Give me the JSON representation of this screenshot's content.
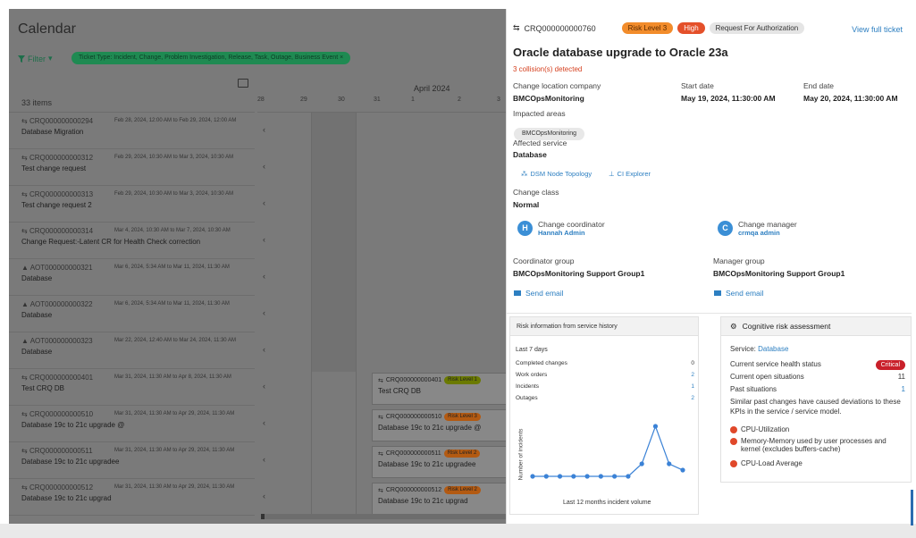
{
  "calendar": {
    "title": "Calendar",
    "filter_label": "Filter",
    "filter_chip": "Ticket Type: Incident, Change, Problem Investigation, Release, Task, Outage, Business Event",
    "items_count": "33 items",
    "month": "April 2024",
    "days": [
      "28",
      "29",
      "30",
      "31",
      "1",
      "2",
      "3"
    ],
    "rows": [
      {
        "id": "CRQ000000000294",
        "date": "Feb 28, 2024, 12:00 AM to Feb 29, 2024, 12:00 AM",
        "name": "Database Migration"
      },
      {
        "id": "CRQ000000000312",
        "date": "Feb 29, 2024, 10:30 AM to Mar 3, 2024, 10:30 AM",
        "name": "Test change request"
      },
      {
        "id": "CRQ000000000313",
        "date": "Feb 29, 2024, 10:30 AM to Mar 3, 2024, 10:30 AM",
        "name": "Test change request 2"
      },
      {
        "id": "CRQ000000000314",
        "date": "Mar 4, 2024, 10:30 AM to Mar 7, 2024, 10:30 AM",
        "name": "Change Request:-Latent CR for Health Check correction"
      },
      {
        "id": "AOT000000000321",
        "date": "Mar 6, 2024, 5:34 AM to Mar 11, 2024, 11:30 AM",
        "name": "Database"
      },
      {
        "id": "AOT000000000322",
        "date": "Mar 6, 2024, 5:34 AM to Mar 11, 2024, 11:30 AM",
        "name": "Database"
      },
      {
        "id": "AOT000000000323",
        "date": "Mar 22, 2024, 12:40 AM to Mar 24, 2024, 11:30 AM",
        "name": "Database"
      },
      {
        "id": "CRQ000000000401",
        "date": "Mar 31, 2024, 11:30 AM to Apr 8, 2024, 11:30 AM",
        "name": "Test CRQ DB"
      },
      {
        "id": "CRQ000000000510",
        "date": "Mar 31, 2024, 11:30 AM to Apr 29, 2024, 11:30 AM",
        "name": "Database 19c to 21c upgrade @"
      },
      {
        "id": "CRQ000000000511",
        "date": "Mar 31, 2024, 11:30 AM to Apr 29, 2024, 11:30 AM",
        "name": "Database 19c to 21c upgradee"
      },
      {
        "id": "CRQ000000000512",
        "date": "Mar 31, 2024, 11:30 AM to Apr 29, 2024, 11:30 AM",
        "name": "Database 19c to 21c upgrad"
      }
    ],
    "bars": [
      {
        "id": "CRQ000000000401",
        "risk": "Risk Level 1",
        "name": "Test CRQ DB"
      },
      {
        "id": "CRQ000000000510",
        "risk": "Risk Level 3",
        "name": "Database 19c to 21c upgrade @"
      },
      {
        "id": "CRQ000000000511",
        "risk": "Risk Level 2",
        "name": "Database 19c to 21c upgradee"
      },
      {
        "id": "CRQ000000000512",
        "risk": "Risk Level 2",
        "name": "Database 19c to 21c upgrad"
      }
    ]
  },
  "detail": {
    "ticket_id": "CRQ000000000760",
    "risk_pill": "Risk Level 3",
    "priority_pill": "High",
    "status_pill": "Request For Authorization",
    "view_full": "View full ticket",
    "title": "Oracle database upgrade to Oracle 23a",
    "collisions": "3 collision(s) detected",
    "location_label": "Change location company",
    "location_value": "BMCOpsMonitoring",
    "start_label": "Start date",
    "start_value": "May 19, 2024, 11:30:00 AM",
    "end_label": "End date",
    "end_value": "May 20, 2024, 11:30:00 AM",
    "impacted_label": "Impacted areas",
    "impacted_value": "BMCOpsMonitoring",
    "service_label": "Affected service",
    "service_value": "Database",
    "dsm_link": "DSM Node Topology",
    "ci_link": "CI Explorer",
    "class_label": "Change class",
    "class_value": "Normal",
    "coordinator_title": "Change coordinator",
    "coordinator_name": "Hannah Admin",
    "coordinator_initial": "H",
    "manager_title": "Change manager",
    "manager_name": "crmqa admin",
    "manager_initial": "C",
    "coord_group_label": "Coordinator group",
    "coord_group_value": "BMCOpsMonitoring Support Group1",
    "mgr_group_label": "Manager group",
    "mgr_group_value": "BMCOpsMonitoring Support Group1",
    "send_email": "Send email"
  },
  "risk_history": {
    "header": "Risk information from service history",
    "period": "Last 7 days",
    "stats": [
      {
        "label": "Completed changes",
        "value": "0",
        "blue": false
      },
      {
        "label": "Work orders",
        "value": "2",
        "blue": true
      },
      {
        "label": "Incidents",
        "value": "1",
        "blue": true
      },
      {
        "label": "Outages",
        "value": "2",
        "blue": true
      }
    ],
    "y_label": "Number of incidents",
    "caption": "Last 12 months incident volume",
    "chart_color": "#3b82d6"
  },
  "chart_data": {
    "type": "line",
    "title": "Last 12 months incident volume",
    "ylabel": "Number of incidents",
    "x": [
      1,
      2,
      3,
      4,
      5,
      6,
      7,
      8,
      9,
      10,
      11,
      12
    ],
    "values": [
      0,
      0,
      0,
      0,
      0,
      0,
      0,
      0,
      1,
      4,
      1,
      0.5
    ],
    "ylim": [
      0,
      5
    ]
  },
  "cognitive": {
    "header": "Cognitive risk assessment",
    "service_label": "Service:",
    "service_value": "Database",
    "health_label": "Current service health status",
    "health_badge": "Critical",
    "open_label": "Current open situations",
    "open_value": "11",
    "past_label": "Past situations",
    "past_value": "1",
    "deviation_text": "Similar past changes have caused deviations to these KPIs in the service / service model.",
    "kpis": [
      "CPU-Utilization",
      "Memory-Memory used by user processes and kernel (excludes buffers-cache)",
      "CPU-Load Average"
    ]
  }
}
